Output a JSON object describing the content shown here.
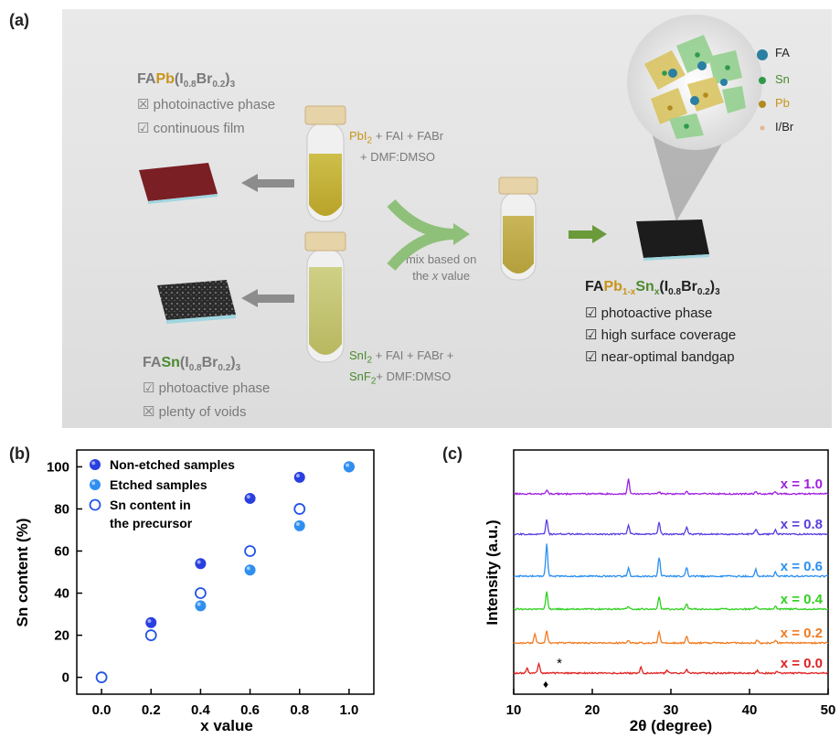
{
  "panel_a": {
    "label": "(a)",
    "pb_film": {
      "formula": {
        "prefix": "FA",
        "metal": "Pb",
        "open": "(I",
        "s1": "0.8",
        "mid": "Br",
        "s2": "0.2",
        "close": ")",
        "s3": "3"
      },
      "items": [
        {
          "box": "☒",
          "text": "photoinactive phase"
        },
        {
          "box": "☑",
          "text": "continuous film"
        }
      ]
    },
    "pb_precursor": {
      "line1": "PbI",
      "line1_sub": "2",
      "line1_rest": " + FAI + FABr",
      "line2": "+ DMF:DMSO"
    },
    "sn_precursor": {
      "line1": "SnI",
      "line1_sub": "2",
      "line1_rest": " + FAI + FABr +",
      "line2a": "SnF",
      "line2_sub": "2",
      "line2_rest": "+ DMF:DMSO"
    },
    "mix_label": {
      "line1": "mix based on",
      "line2a": "the ",
      "line2_var": "x",
      "line2b": " value"
    },
    "sn_film": {
      "formula": {
        "prefix": "FA",
        "metal": "Sn",
        "open": "(I",
        "s1": "0.8",
        "mid": "Br",
        "s2": "0.2",
        "close": ")",
        "s3": "3"
      },
      "items": [
        {
          "box": "☑",
          "text": "photoactive phase"
        },
        {
          "box": "☒",
          "text": "plenty of voids"
        }
      ]
    },
    "mixed_film": {
      "formula": {
        "prefix": "FA",
        "pb": "Pb",
        "pb_sub": "1-x",
        "sn": "Sn",
        "sn_sub": "x",
        "open": "(I",
        "s1": "0.8",
        "mid": "Br",
        "s2": "0.2",
        "close": ")",
        "s3": "3"
      },
      "items": [
        {
          "box": "☑",
          "text": "photoactive phase"
        },
        {
          "box": "☑",
          "text": "high surface coverage"
        },
        {
          "box": "☑",
          "text": "near-optimal bandgap"
        }
      ]
    },
    "legend": [
      {
        "label": "FA",
        "color": "#2a7fa3"
      },
      {
        "label": "Sn",
        "color": "#2f9a4a"
      },
      {
        "label": "Pb",
        "color": "#b28a1e"
      },
      {
        "label": "I/Br",
        "color": "#e8b58a"
      }
    ]
  },
  "chart_data": [
    {
      "panel": "(b)",
      "type": "scatter",
      "xlabel": "x value",
      "ylabel": "Sn content (%)",
      "xlim": [
        -0.1,
        1.1
      ],
      "ylim": [
        -8,
        108
      ],
      "xticks": [
        "0.0",
        "0.2",
        "0.4",
        "0.6",
        "0.8",
        "1.0"
      ],
      "yticks": [
        "0",
        "20",
        "40",
        "60",
        "80",
        "100"
      ],
      "legend_position": "top-left",
      "series": [
        {
          "name": "Non-etched samples",
          "marker": "filled-dark",
          "color": "#2a3fe0",
          "x": [
            0.2,
            0.4,
            0.6,
            0.8,
            1.0
          ],
          "y": [
            26,
            54,
            85,
            95,
            100
          ]
        },
        {
          "name": "Etched samples",
          "marker": "filled-light",
          "color": "#2f8ff0",
          "x": [
            0.2,
            0.4,
            0.6,
            0.8,
            1.0
          ],
          "y": [
            20,
            34,
            51,
            72,
            100
          ]
        },
        {
          "name_line1": "Sn content in",
          "name_line2": "the precursor",
          "marker": "open",
          "color": "#2255e8",
          "x": [
            0.0,
            0.2,
            0.4,
            0.6,
            0.8
          ],
          "y": [
            0,
            20,
            40,
            60,
            80
          ]
        }
      ]
    },
    {
      "panel": "(c)",
      "type": "line",
      "xlabel": "2θ (degree)",
      "ylabel": "Intensity (a.u.)",
      "xlim": [
        10,
        50
      ],
      "xticks": [
        "10",
        "20",
        "30",
        "40",
        "50"
      ],
      "annotations": [
        "*",
        "♦"
      ],
      "series": [
        {
          "name": "x = 0.0",
          "color": "#e02020",
          "peaks": [
            [
              11.7,
              0.5
            ],
            [
              13.2,
              0.9
            ],
            [
              26.2,
              0.6
            ],
            [
              29.5,
              0.3
            ],
            [
              32,
              0.35
            ],
            [
              41,
              0.25
            ],
            [
              43.5,
              0.2
            ]
          ]
        },
        {
          "name": "x = 0.2",
          "color": "#f07a20",
          "peaks": [
            [
              12.7,
              0.9
            ],
            [
              14.2,
              1.2
            ],
            [
              24.6,
              0.3
            ],
            [
              28.5,
              1.1
            ],
            [
              32,
              0.7
            ],
            [
              41,
              0.3
            ],
            [
              43.3,
              0.3
            ]
          ]
        },
        {
          "name": "x = 0.4",
          "color": "#30d020",
          "peaks": [
            [
              14.2,
              1.8
            ],
            [
              24.6,
              0.3
            ],
            [
              28.5,
              1.2
            ],
            [
              32,
              0.5
            ],
            [
              40.8,
              0.3
            ],
            [
              43.3,
              0.3
            ]
          ]
        },
        {
          "name": "x = 0.6",
          "color": "#2a8ff0",
          "peaks": [
            [
              14.2,
              3.2
            ],
            [
              24.6,
              0.8
            ],
            [
              28.5,
              1.9
            ],
            [
              32,
              0.9
            ],
            [
              40.8,
              0.7
            ],
            [
              43.3,
              0.4
            ]
          ]
        },
        {
          "name": "x = 0.8",
          "color": "#5a3de0",
          "peaks": [
            [
              14.2,
              1.5
            ],
            [
              24.6,
              0.9
            ],
            [
              28.5,
              1.2
            ],
            [
              32,
              0.7
            ],
            [
              40.8,
              0.5
            ],
            [
              43.3,
              0.4
            ]
          ]
        },
        {
          "name": "x = 1.0",
          "color": "#a020e0",
          "peaks": [
            [
              14.2,
              0.35
            ],
            [
              24.6,
              1.5
            ],
            [
              28.5,
              0.2
            ],
            [
              32,
              0.2
            ],
            [
              40.8,
              0.2
            ],
            [
              43.3,
              0.2
            ]
          ]
        }
      ]
    }
  ]
}
